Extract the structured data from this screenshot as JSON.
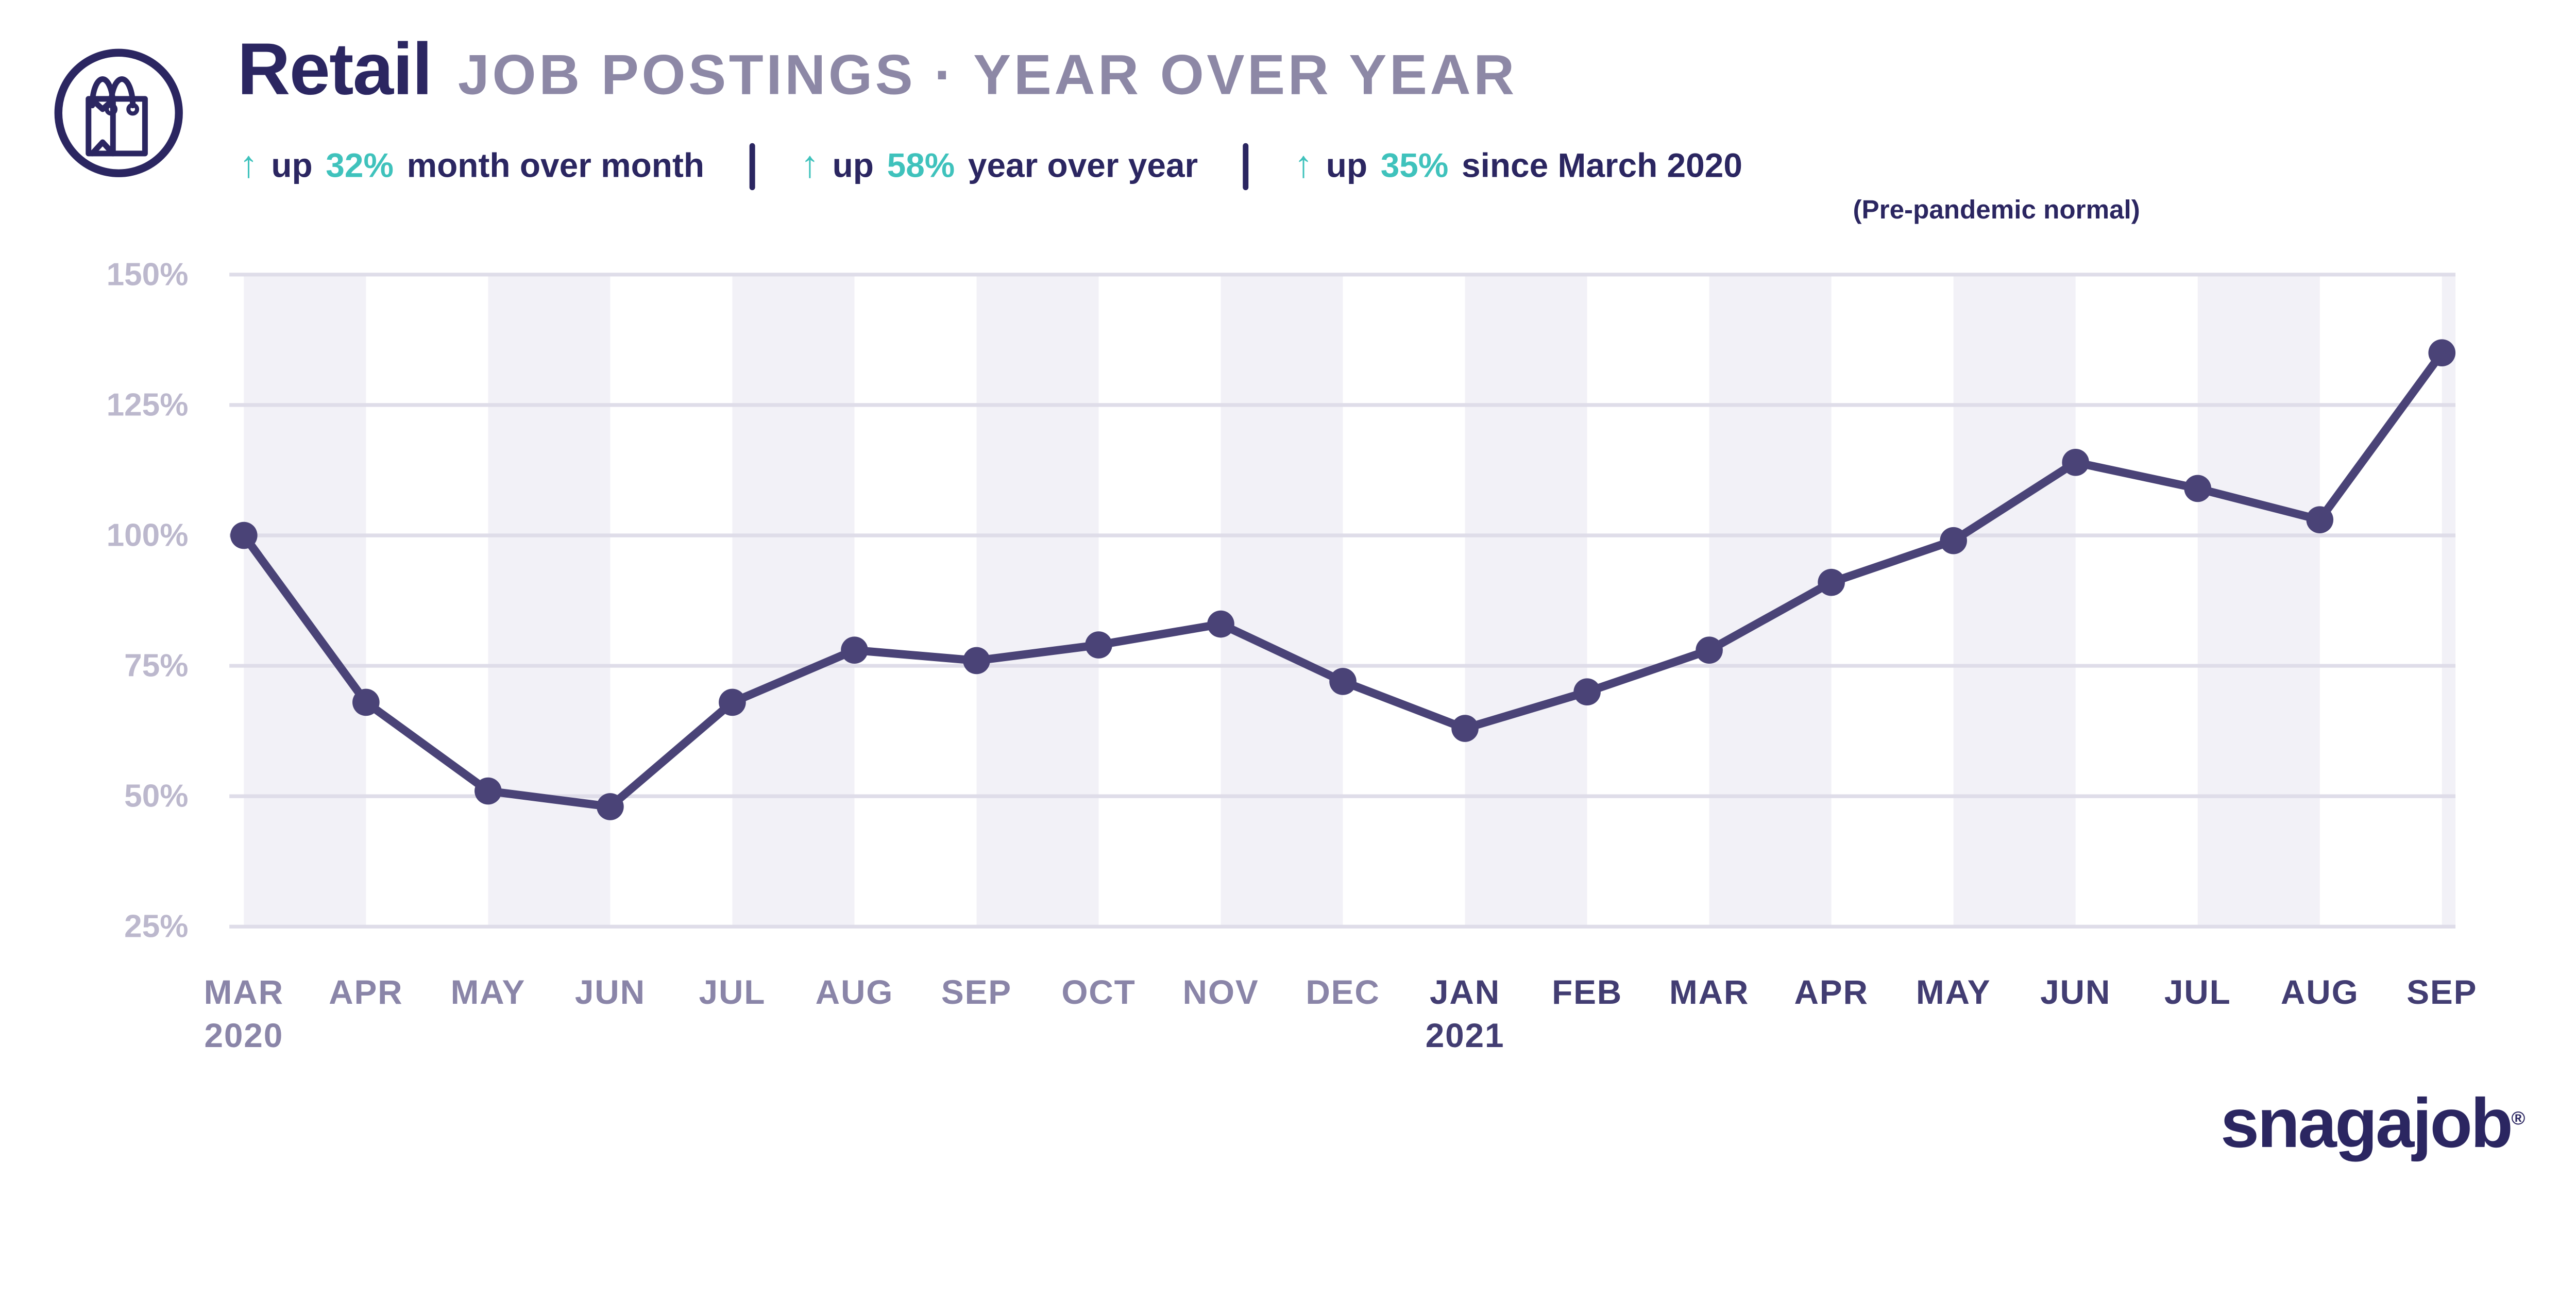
{
  "header": {
    "title": "Retail",
    "subtitle": "JOB POSTINGS · YEAR OVER YEAR",
    "icon": "shopping-bag-icon",
    "stats": [
      {
        "arrow": "↑",
        "prefix": "up",
        "value": "32%",
        "suffix": "month over month"
      },
      {
        "arrow": "↑",
        "prefix": "up",
        "value": "58%",
        "suffix": "year over year"
      },
      {
        "arrow": "↑",
        "prefix": "up",
        "value": "35%",
        "suffix": "since March 2020",
        "note": "(Pre-pandemic normal)"
      }
    ]
  },
  "chart_data": {
    "type": "line",
    "title": "Retail JOB POSTINGS · YEAR OVER YEAR",
    "x": [
      {
        "label": "MAR",
        "year": "2020",
        "group": "2020"
      },
      {
        "label": "APR",
        "group": "2020"
      },
      {
        "label": "MAY",
        "group": "2020"
      },
      {
        "label": "JUN",
        "group": "2020"
      },
      {
        "label": "JUL",
        "group": "2020"
      },
      {
        "label": "AUG",
        "group": "2020"
      },
      {
        "label": "SEP",
        "group": "2020"
      },
      {
        "label": "OCT",
        "group": "2020"
      },
      {
        "label": "NOV",
        "group": "2020"
      },
      {
        "label": "DEC",
        "group": "2020"
      },
      {
        "label": "JAN",
        "year": "2021",
        "group": "2021"
      },
      {
        "label": "FEB",
        "group": "2021"
      },
      {
        "label": "MAR",
        "group": "2021"
      },
      {
        "label": "APR",
        "group": "2021"
      },
      {
        "label": "MAY",
        "group": "2021"
      },
      {
        "label": "JUN",
        "group": "2021"
      },
      {
        "label": "JUL",
        "group": "2021"
      },
      {
        "label": "AUG",
        "group": "2021"
      },
      {
        "label": "SEP",
        "group": "2021"
      }
    ],
    "values": [
      100,
      68,
      51,
      48,
      68,
      78,
      76,
      79,
      83,
      72,
      63,
      70,
      78,
      91,
      99,
      114,
      109,
      103,
      135
    ],
    "ylim": [
      25,
      150
    ],
    "yticks": [
      150,
      125,
      100,
      75,
      50,
      25
    ],
    "ytick_suffix": "%",
    "grid": "horizontal",
    "legend": "none",
    "banding": "alternating shaded bands spanning each odd-even month pair",
    "colors": {
      "line": "#4a4377",
      "band": "#f2f1f7",
      "grid": "#dfdde9",
      "ytick": "#bcb8cd",
      "xtick_2020": "#8a85a8",
      "xtick_2021": "#423d72",
      "accent_teal": "#3fc2bc",
      "navy": "#2b2661"
    }
  },
  "footer": {
    "logo": "snagajob",
    "registered": "®"
  }
}
